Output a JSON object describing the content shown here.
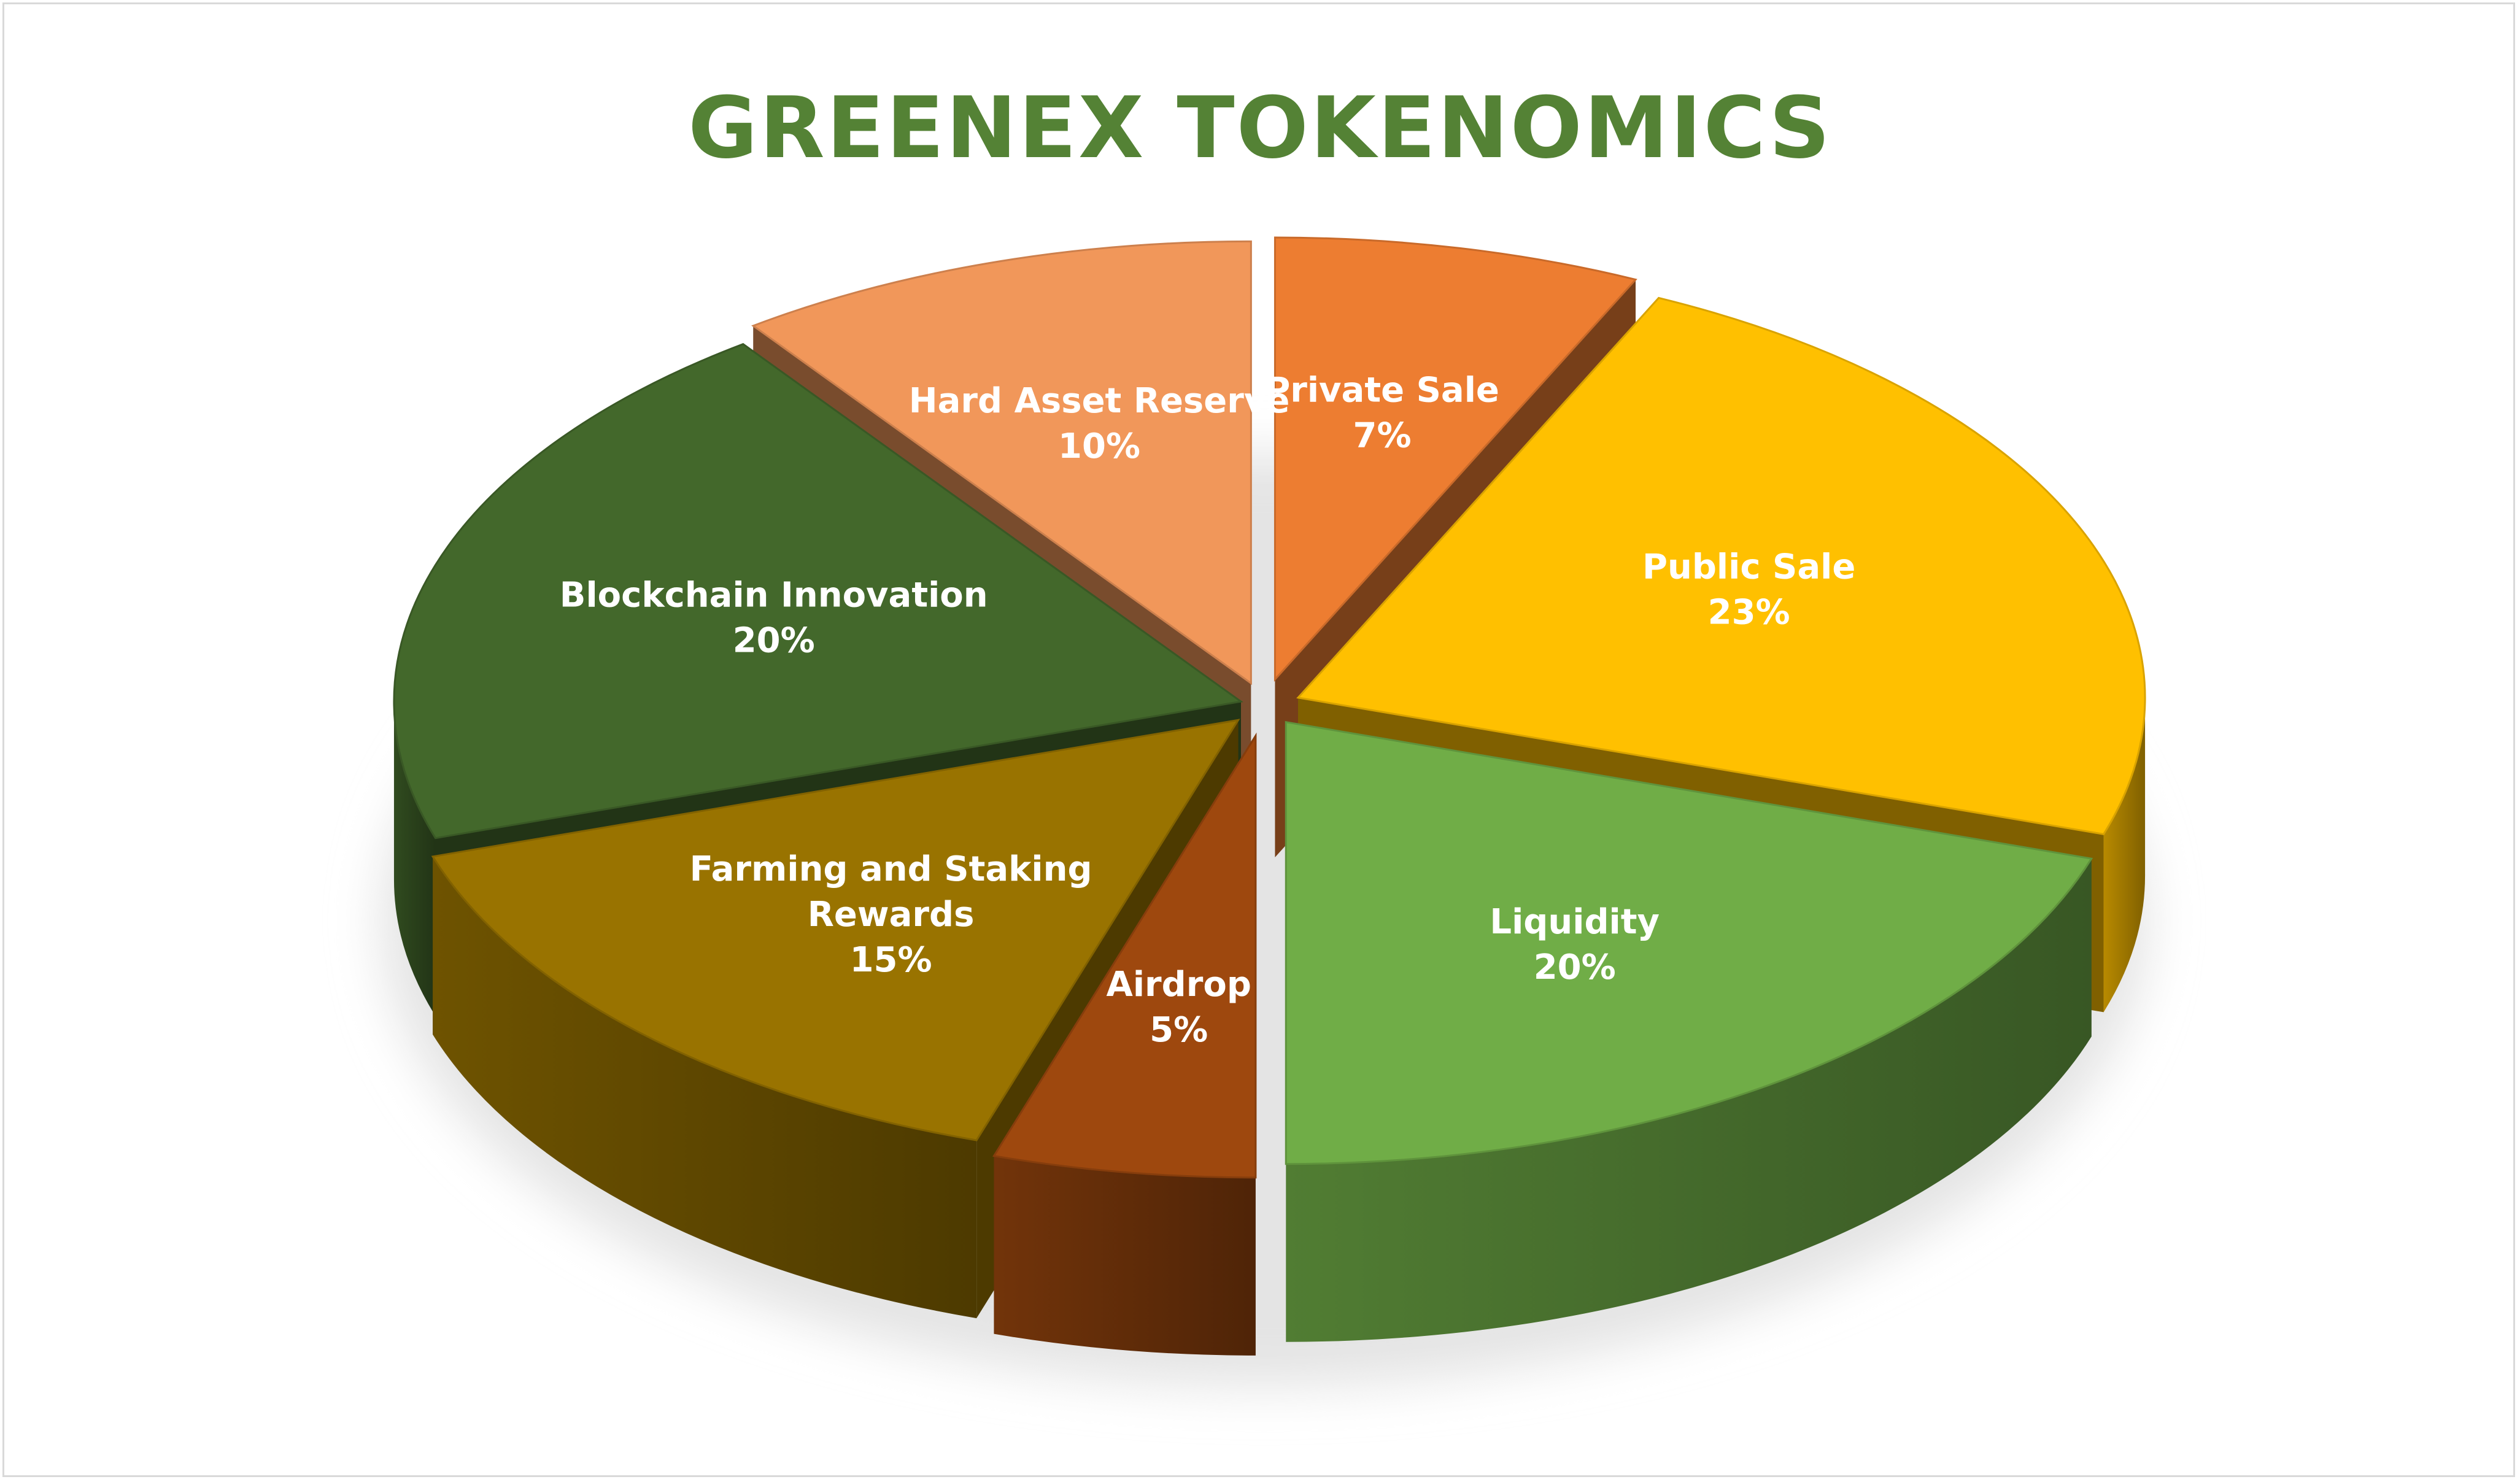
{
  "title": "GREENEX TOKENOMICS",
  "chart_data": {
    "type": "pie",
    "title": "GREENEX TOKENOMICS",
    "style": "3d-exploded",
    "slices": [
      {
        "label": "Private Sale",
        "value": 7,
        "value_label": "7%",
        "color": "#ED7D31"
      },
      {
        "label": "Public Sale",
        "value": 23,
        "value_label": "23%",
        "color": "#FFC000"
      },
      {
        "label": "Liquidity",
        "value": 20,
        "value_label": "20%",
        "color": "#70AD47"
      },
      {
        "label": "Airdrop",
        "value": 5,
        "value_label": "5%",
        "color": "#9E480E"
      },
      {
        "label": "Farming and Staking Rewards",
        "value": 15,
        "value_label": "15%",
        "color": "#997300"
      },
      {
        "label": "Blockchain Innovation",
        "value": 20,
        "value_label": "20%",
        "color": "#43682B"
      },
      {
        "label": "Hard Asset Reserve",
        "value": 10,
        "value_label": "10%",
        "color": "#F1975A"
      }
    ]
  }
}
